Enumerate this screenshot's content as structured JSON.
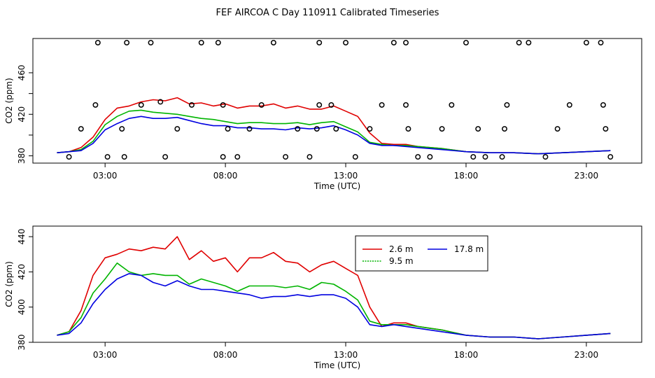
{
  "title": "FEF AIRCOA C  Day 110911  Calibrated Timeseries",
  "colors": {
    "red": "#e00000",
    "green": "#00b400",
    "blue": "#0000e0",
    "qc": "#000000"
  },
  "chart_data": [
    {
      "type": "line",
      "xlabel": "Time (UTC)",
      "ylabel": "CO2 (ppm)",
      "xlim": [
        0.0,
        25.3
      ],
      "ylim": [
        373,
        493
      ],
      "xticks": [
        3,
        8,
        13,
        18,
        23
      ],
      "xtick_labels": [
        "03:00",
        "08:00",
        "13:00",
        "18:00",
        "23:00"
      ],
      "yticks": [
        380,
        400,
        420,
        440,
        460
      ],
      "yticks_labeled": [
        380,
        420,
        460
      ],
      "grid": false,
      "legend": "none",
      "series": [
        {
          "color": "red",
          "x": [
            1,
            1.5,
            2,
            2.5,
            3,
            3.5,
            4,
            4.5,
            5,
            5.5,
            6,
            6.5,
            7,
            7.5,
            8,
            8.5,
            9,
            9.5,
            10,
            10.5,
            11,
            11.5,
            12,
            12.5,
            13,
            13.5,
            14,
            14.5,
            15,
            15.5,
            16,
            17,
            18,
            19,
            20,
            21,
            22,
            23,
            24
          ],
          "y": [
            383,
            384,
            388,
            398,
            415,
            426,
            428,
            432,
            434,
            433,
            436,
            430,
            431,
            428,
            430,
            426,
            428,
            428,
            430,
            426,
            428,
            425,
            425,
            428,
            423,
            418,
            402,
            392,
            391,
            391,
            389,
            387,
            384,
            383,
            383,
            382,
            383,
            384,
            385
          ]
        },
        {
          "color": "green",
          "x": [
            1,
            1.5,
            2,
            2.5,
            3,
            3.5,
            4,
            4.5,
            5,
            5.5,
            6,
            6.5,
            7,
            7.5,
            8,
            8.5,
            9,
            9.5,
            10,
            10.5,
            11,
            11.5,
            12,
            12.5,
            13,
            13.5,
            14,
            14.5,
            15,
            15.5,
            16,
            17,
            18,
            19,
            20,
            21,
            22,
            23,
            24
          ],
          "y": [
            383,
            384,
            386,
            394,
            410,
            418,
            423,
            424,
            422,
            421,
            420,
            418,
            416,
            415,
            413,
            411,
            412,
            412,
            411,
            411,
            412,
            410,
            412,
            413,
            408,
            403,
            393,
            391,
            390,
            390,
            389,
            387,
            384,
            383,
            383,
            382,
            383,
            384,
            385
          ]
        },
        {
          "color": "blue",
          "x": [
            1,
            1.5,
            2,
            2.5,
            3,
            3.5,
            4,
            4.5,
            5,
            5.5,
            6,
            6.5,
            7,
            7.5,
            8,
            8.5,
            9,
            9.5,
            10,
            10.5,
            11,
            11.5,
            12,
            12.5,
            13,
            13.5,
            14,
            14.5,
            15,
            15.5,
            16,
            17,
            18,
            19,
            20,
            21,
            22,
            23,
            24
          ],
          "y": [
            383,
            384,
            385,
            392,
            405,
            411,
            416,
            418,
            416,
            416,
            417,
            414,
            411,
            409,
            409,
            407,
            407,
            406,
            406,
            405,
            407,
            406,
            407,
            409,
            405,
            400,
            392,
            390,
            390,
            389,
            388,
            386,
            384,
            383,
            383,
            382,
            383,
            384,
            385
          ]
        }
      ],
      "qc_points": {
        "x": [
          1.5,
          2.0,
          2.6,
          2.7,
          3.1,
          3.7,
          3.8,
          3.9,
          4.5,
          4.9,
          5.3,
          5.5,
          6.0,
          6.6,
          7.0,
          7.7,
          7.9,
          7.9,
          8.1,
          8.5,
          9.0,
          9.5,
          10.0,
          10.5,
          11.0,
          11.5,
          11.8,
          11.9,
          11.9,
          12.4,
          12.6,
          13.0,
          13.4,
          14.0,
          14.5,
          15.0,
          15.5,
          15.5,
          15.6,
          16.0,
          16.5,
          17.0,
          17.4,
          18.0,
          18.3,
          18.5,
          18.8,
          19.5,
          19.6,
          19.7,
          20.2,
          20.6,
          21.3,
          21.8,
          22.3,
          23.0,
          23.6,
          23.7,
          23.8,
          24.0
        ],
        "y": [
          379,
          406,
          429,
          489,
          379,
          406,
          379,
          489,
          429,
          489,
          432,
          379,
          406,
          429,
          489,
          489,
          379,
          429,
          406,
          379,
          406,
          429,
          489,
          379,
          406,
          379,
          406,
          429,
          489,
          429,
          406,
          489,
          379,
          406,
          429,
          489,
          489,
          429,
          406,
          379,
          379,
          406,
          429,
          489,
          379,
          406,
          379,
          379,
          406,
          429,
          489,
          489,
          379,
          406,
          429,
          489,
          489,
          429,
          406,
          379
        ]
      }
    },
    {
      "type": "line",
      "xlabel": "Time (UTC)",
      "ylabel": "CO2 (ppm)",
      "xlim": [
        0.0,
        25.3
      ],
      "ylim": [
        380,
        446
      ],
      "xticks": [
        3,
        8,
        13,
        18,
        23
      ],
      "xtick_labels": [
        "03:00",
        "08:00",
        "13:00",
        "18:00",
        "23:00"
      ],
      "yticks": [
        380,
        400,
        420,
        440
      ],
      "grid": false,
      "legend": "top-right",
      "series": [
        {
          "name": "2.6 m",
          "color": "red",
          "x": [
            1,
            1.5,
            2,
            2.5,
            3,
            3.5,
            4,
            4.5,
            5,
            5.5,
            6,
            6.5,
            7,
            7.5,
            8,
            8.5,
            9,
            9.5,
            10,
            10.5,
            11,
            11.5,
            12,
            12.5,
            13,
            13.5,
            14,
            14.5,
            15,
            15.5,
            16,
            17,
            18,
            19,
            20,
            21,
            22,
            23,
            24
          ],
          "y": [
            384,
            386,
            398,
            418,
            428,
            430,
            433,
            432,
            434,
            433,
            440,
            427,
            432,
            426,
            428,
            420,
            428,
            428,
            431,
            426,
            425,
            420,
            424,
            426,
            422,
            418,
            400,
            389,
            391,
            391,
            389,
            387,
            384,
            383,
            383,
            382,
            383,
            384,
            385
          ]
        },
        {
          "name": "9.5 m",
          "color": "green",
          "x": [
            1,
            1.5,
            2,
            2.5,
            3,
            3.5,
            4,
            4.5,
            5,
            5.5,
            6,
            6.5,
            7,
            7.5,
            8,
            8.5,
            9,
            9.5,
            10,
            10.5,
            11,
            11.5,
            12,
            12.5,
            13,
            13.5,
            14,
            14.5,
            15,
            15.5,
            16,
            17,
            18,
            19,
            20,
            21,
            22,
            23,
            24
          ],
          "y": [
            384,
            386,
            394,
            408,
            416,
            425,
            420,
            418,
            419,
            418,
            418,
            413,
            416,
            414,
            412,
            409,
            412,
            412,
            412,
            411,
            412,
            410,
            414,
            413,
            409,
            404,
            392,
            390,
            390,
            390,
            389,
            387,
            384,
            383,
            383,
            382,
            383,
            384,
            385
          ]
        },
        {
          "name": "17.8 m",
          "color": "blue",
          "x": [
            1,
            1.5,
            2,
            2.5,
            3,
            3.5,
            4,
            4.5,
            5,
            5.5,
            6,
            6.5,
            7,
            7.5,
            8,
            8.5,
            9,
            9.5,
            10,
            10.5,
            11,
            11.5,
            12,
            12.5,
            13,
            13.5,
            14,
            14.5,
            15,
            15.5,
            16,
            17,
            18,
            19,
            20,
            21,
            22,
            23,
            24
          ],
          "y": [
            384,
            385,
            391,
            402,
            410,
            416,
            419,
            418,
            414,
            412,
            415,
            412,
            410,
            410,
            409,
            408,
            407,
            405,
            406,
            406,
            407,
            406,
            407,
            407,
            405,
            400,
            390,
            389,
            390,
            389,
            388,
            386,
            384,
            383,
            383,
            382,
            383,
            384,
            385
          ]
        }
      ]
    }
  ]
}
